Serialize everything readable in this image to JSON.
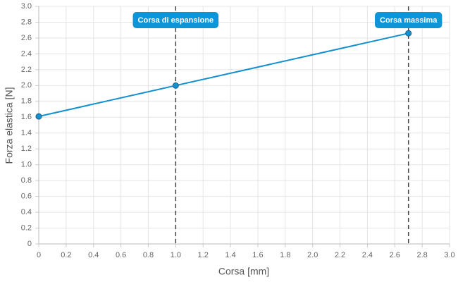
{
  "chart_data": {
    "type": "line",
    "x_label": "Corsa [mm]",
    "y_label": "Forza elastica [N]",
    "x": [
      0,
      1,
      2.7
    ],
    "series": [
      {
        "color": "#1390d0",
        "values": [
          1.61,
          2.0,
          2.66
        ]
      }
    ],
    "xlim": [
      0,
      3
    ],
    "ylim": [
      0,
      3
    ],
    "xticks": [
      0,
      0.2,
      0.4,
      0.6,
      0.8,
      {
        "value": 1,
        "label": "1.0"
      },
      1.2,
      1.4,
      1.6,
      1.8,
      {
        "value": 2,
        "label": "2.0"
      },
      2.2,
      2.4,
      2.6,
      2.8,
      {
        "value": 3,
        "label": "3.0"
      }
    ],
    "yticks": [
      0,
      0.2,
      0.4,
      0.6,
      0.8,
      {
        "value": 1,
        "label": "1.0"
      },
      1.2,
      1.4,
      1.6,
      1.8,
      {
        "value": 2,
        "label": "2.0"
      },
      2.2,
      2.4,
      2.6,
      2.8,
      {
        "value": 3,
        "label": "3.0"
      }
    ],
    "grid": true,
    "annotations": [
      {
        "x": 1,
        "text": "Corsa di espansione"
      },
      {
        "x": 2.7,
        "text": "Corsa massima"
      }
    ],
    "annotation_color": "#0e95d8"
  }
}
